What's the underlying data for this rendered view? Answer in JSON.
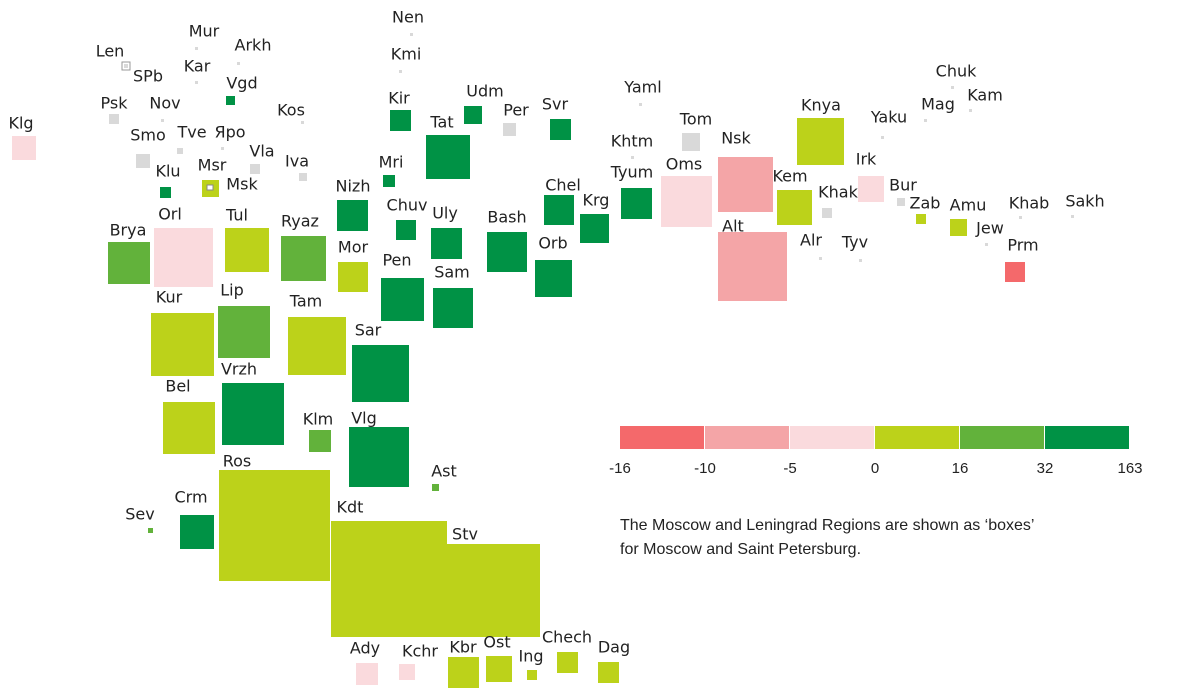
{
  "regions": [
    {
      "label": "Nen",
      "color": "#d9d9d9"
    },
    {
      "label": "Kmi",
      "color": "#d9d9d9"
    },
    {
      "label": "Mur",
      "color": "#d9d9d9"
    },
    {
      "label": "Arkh",
      "color": "#d9d9d9"
    },
    {
      "label": "Len",
      "color": "#ffffff"
    },
    {
      "label": "SPb",
      "color": "#d9d9d9"
    },
    {
      "label": "Kar",
      "color": "#d9d9d9"
    },
    {
      "label": "Vgd",
      "color": "#009245"
    },
    {
      "label": "Psk",
      "color": "#d9d9d9"
    },
    {
      "label": "Nov",
      "color": "#d9d9d9"
    },
    {
      "label": "Kos",
      "color": "#d9d9d9"
    },
    {
      "label": "Klg",
      "color": "#fadadd"
    },
    {
      "label": "Smo",
      "color": "#d9d9d9"
    },
    {
      "label": "Tve",
      "color": "#d9d9d9"
    },
    {
      "label": "Яро",
      "color": "#d9d9d9"
    },
    {
      "label": "Vla",
      "color": "#d9d9d9"
    },
    {
      "label": "Iva",
      "color": "#d9d9d9"
    },
    {
      "label": "Msr",
      "color": "#bcd21a"
    },
    {
      "label": "Msk",
      "color": "#d9d9d9"
    },
    {
      "label": "Klu",
      "color": "#009245"
    },
    {
      "label": "Kir",
      "color": "#009245"
    },
    {
      "label": "Udm",
      "color": "#009245"
    },
    {
      "label": "Per",
      "color": "#d9d9d9"
    },
    {
      "label": "Svr",
      "color": "#009245"
    },
    {
      "label": "Tat",
      "color": "#009245"
    },
    {
      "label": "Mri",
      "color": "#009245"
    },
    {
      "label": "Nizh",
      "color": "#009245"
    },
    {
      "label": "Chuv",
      "color": "#009245"
    },
    {
      "label": "Uly",
      "color": "#009245"
    },
    {
      "label": "Mor",
      "color": "#bcd21a"
    },
    {
      "label": "Pen",
      "color": "#009245"
    },
    {
      "label": "Sam",
      "color": "#009245"
    },
    {
      "label": "Bash",
      "color": "#009245"
    },
    {
      "label": "Chel",
      "color": "#009245"
    },
    {
      "label": "Krg",
      "color": "#009245"
    },
    {
      "label": "Orb",
      "color": "#009245"
    },
    {
      "label": "Tyum",
      "color": "#009245"
    },
    {
      "label": "Khtm",
      "color": "#d9d9d9"
    },
    {
      "label": "Yaml",
      "color": "#d9d9d9"
    },
    {
      "label": "Tom",
      "color": "#d9d9d9"
    },
    {
      "label": "Oms",
      "color": "#fadadd"
    },
    {
      "label": "Nsk",
      "color": "#f4a5a7"
    },
    {
      "label": "Alt",
      "color": "#f4a5a7"
    },
    {
      "label": "Knya",
      "color": "#bcd21a"
    },
    {
      "label": "Kem",
      "color": "#bcd21a"
    },
    {
      "label": "Khak",
      "color": "#d9d9d9"
    },
    {
      "label": "Irk",
      "color": "#fadadd"
    },
    {
      "label": "Bur",
      "color": "#d9d9d9"
    },
    {
      "label": "Zab",
      "color": "#bcd21a"
    },
    {
      "label": "Amu",
      "color": "#bcd21a"
    },
    {
      "label": "Jew",
      "color": "#d9d9d9"
    },
    {
      "label": "Khab",
      "color": "#d9d9d9"
    },
    {
      "label": "Sakh",
      "color": "#d9d9d9"
    },
    {
      "label": "Prm",
      "color": "#f4696b"
    },
    {
      "label": "Alr",
      "color": "#d9d9d9"
    },
    {
      "label": "Tyv",
      "color": "#d9d9d9"
    },
    {
      "label": "Yaku",
      "color": "#d9d9d9"
    },
    {
      "label": "Mag",
      "color": "#d9d9d9"
    },
    {
      "label": "Chuk",
      "color": "#d9d9d9"
    },
    {
      "label": "Kam",
      "color": "#d9d9d9"
    },
    {
      "label": "Brya",
      "color": "#62b23b"
    },
    {
      "label": "Orl",
      "color": "#fadadd"
    },
    {
      "label": "Tul",
      "color": "#bcd21a"
    },
    {
      "label": "Ryaz",
      "color": "#62b23b"
    },
    {
      "label": "Kur",
      "color": "#bcd21a"
    },
    {
      "label": "Lip",
      "color": "#62b23b"
    },
    {
      "label": "Tam",
      "color": "#bcd21a"
    },
    {
      "label": "Sar",
      "color": "#009245"
    },
    {
      "label": "Bel",
      "color": "#bcd21a"
    },
    {
      "label": "Vrzh",
      "color": "#009245"
    },
    {
      "label": "Klm",
      "color": "#62b23b"
    },
    {
      "label": "Vlg",
      "color": "#009245"
    },
    {
      "label": "Ast",
      "color": "#62b23b"
    },
    {
      "label": "Ros",
      "color": "#bcd21a"
    },
    {
      "label": "Crm",
      "color": "#009245"
    },
    {
      "label": "Sev",
      "color": "#62b23b"
    },
    {
      "label": "Kdt",
      "color": "#bcd21a"
    },
    {
      "label": "Stv",
      "color": "#bcd21a"
    },
    {
      "label": "Ady",
      "color": "#fadadd"
    },
    {
      "label": "Kchr",
      "color": "#fadadd"
    },
    {
      "label": "Kbr",
      "color": "#bcd21a"
    },
    {
      "label": "Ost",
      "color": "#bcd21a"
    },
    {
      "label": "Ing",
      "color": "#bcd21a"
    },
    {
      "label": "Chech",
      "color": "#bcd21a"
    },
    {
      "label": "Dag",
      "color": "#bcd21a"
    }
  ],
  "legend": {
    "colors": [
      "#f4696b",
      "#f4a5a7",
      "#fadadd",
      "#bcd21a",
      "#62b23b",
      "#009245"
    ],
    "ticks": [
      -16,
      -10,
      -5,
      0,
      16,
      32,
      163
    ]
  },
  "note": [
    "The Moscow and Leningrad Regions are shown as ‘boxes’",
    "for Moscow and Saint Petersburg."
  ]
}
